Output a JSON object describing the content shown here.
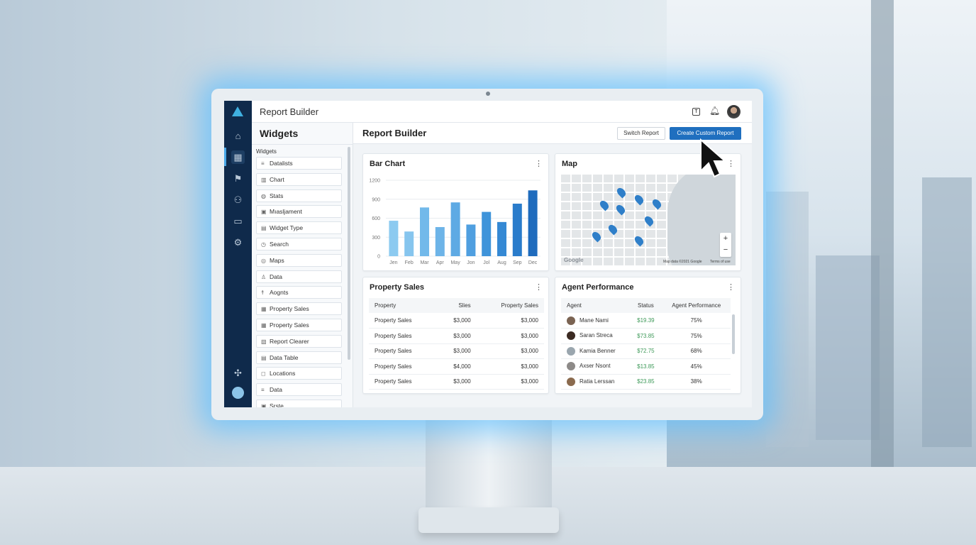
{
  "app": {
    "title": "Report Builder"
  },
  "header": {
    "icons": [
      "help-icon",
      "bell-icon",
      "user-avatar"
    ]
  },
  "rail": {
    "icons": [
      "home-icon",
      "widgets-icon",
      "flow-icon",
      "users-icon",
      "inbox-icon",
      "settings-icon",
      "puzzle-icon",
      "avatar"
    ]
  },
  "widgets_panel": {
    "title": "Widgets",
    "section": "Widgets",
    "items": [
      {
        "label": "Datalists",
        "icon": "≡"
      },
      {
        "label": "Chart",
        "icon": "▥"
      },
      {
        "label": "Stats",
        "icon": "◍"
      },
      {
        "label": "Mıasljament",
        "icon": "▣"
      },
      {
        "label": "Widget Type",
        "icon": "▤"
      },
      {
        "label": "Search",
        "icon": "◷"
      },
      {
        "label": "Maps",
        "icon": "◎"
      },
      {
        "label": "Data",
        "icon": "♙"
      },
      {
        "label": "Aognts",
        "icon": "☨"
      },
      {
        "label": "Property Sales",
        "icon": "▦"
      },
      {
        "label": "Property Sales",
        "icon": "▦"
      },
      {
        "label": "Report Clearer",
        "icon": "▧"
      },
      {
        "label": "Data Table",
        "icon": "▤"
      },
      {
        "label": "Locations",
        "icon": "◻"
      },
      {
        "label": "Data",
        "icon": "≡"
      },
      {
        "label": "Srste",
        "icon": "▣"
      }
    ]
  },
  "main": {
    "title": "Report Builder",
    "switch_label": "Switch Report",
    "create_label": "Create Custom Report",
    "accent": "#1f6fbf"
  },
  "bar_card": {
    "title": "Bar Chart"
  },
  "chart_data": {
    "type": "bar",
    "categories": [
      "Jen",
      "Feb",
      "Mar",
      "Apr",
      "May",
      "Jon",
      "Jol",
      "Aug",
      "Sep",
      "Dec"
    ],
    "values": [
      560,
      390,
      770,
      460,
      850,
      500,
      700,
      540,
      830,
      1040
    ],
    "yticks": [
      "0",
      "300",
      "600",
      "900",
      "1200"
    ],
    "ylim": [
      0,
      1200
    ],
    "grid": true,
    "colors": [
      "#8ccaf0",
      "#86c5ee",
      "#72b9ea",
      "#6db4e8",
      "#5eaae4",
      "#4f9fe0",
      "#3f94da",
      "#3589d4",
      "#2a7ccb",
      "#1f6bbd"
    ]
  },
  "map_card": {
    "title": "Map",
    "attribution": "Map data ©2021 Google",
    "terms": "Terms of use",
    "logo": "Google",
    "zoom_in": "+",
    "zoom_out": "−"
  },
  "property_card": {
    "title": "Property Sales",
    "columns": [
      "Property",
      "Slies",
      "Property Sales"
    ],
    "rows": [
      [
        "Property Sales",
        "$3,000",
        "$3,000"
      ],
      [
        "Property Sales",
        "$3,000",
        "$3,000"
      ],
      [
        "Property Sales",
        "$3,000",
        "$3,000"
      ],
      [
        "Property Sales",
        "$4,000",
        "$3,000"
      ],
      [
        "Property Sales",
        "$3,000",
        "$3,000"
      ]
    ]
  },
  "agent_card": {
    "title": "Agent Performance",
    "columns": [
      "Agent",
      "Status",
      "Agent Performance"
    ],
    "rows": [
      [
        "Mane Nami",
        "$19.39",
        "75%"
      ],
      [
        "Saran Streca",
        "$73.85",
        "75%"
      ],
      [
        "Kamia Benner",
        "$72.75",
        "68%"
      ],
      [
        "Axser Nsont",
        "$13.85",
        "45%"
      ],
      [
        "Ratia Lerssan",
        "$23.85",
        "38%"
      ]
    ]
  }
}
